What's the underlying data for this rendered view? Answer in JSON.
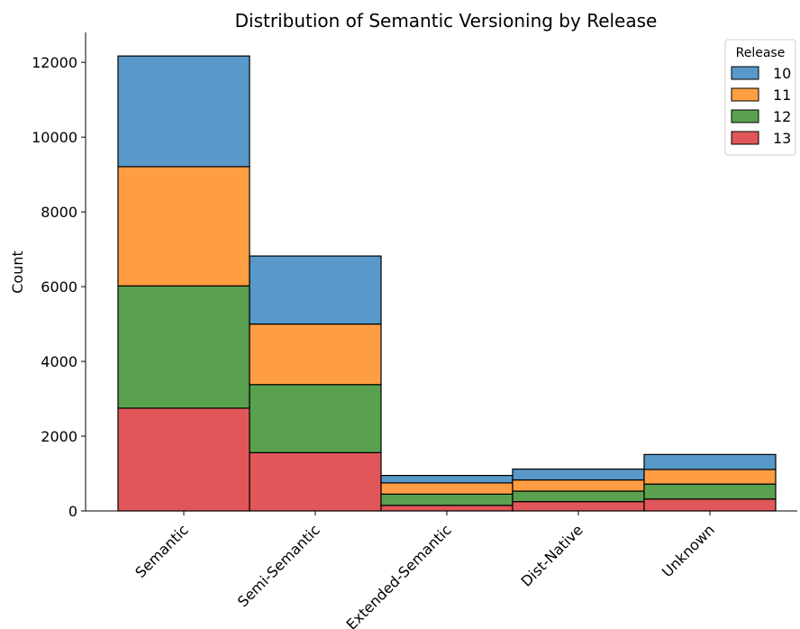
{
  "chart_data": {
    "type": "bar",
    "stacked": true,
    "title": "Distribution of Semantic Versioning by Release",
    "xlabel": "",
    "ylabel": "Count",
    "ylim": [
      0,
      12800
    ],
    "yticks": [
      0,
      2000,
      4000,
      6000,
      8000,
      10000,
      12000
    ],
    "categories": [
      "Semantic",
      "Semi-Semantic",
      "Extended-Semantic",
      "Dist-Native",
      "Unknown"
    ],
    "series": [
      {
        "name": "13",
        "color": "#e15759",
        "values": [
          2750,
          1560,
          150,
          250,
          320
        ]
      },
      {
        "name": "12",
        "color": "#59a14f",
        "values": [
          3270,
          1820,
          300,
          280,
          400
        ]
      },
      {
        "name": "11",
        "color": "#ff9d43",
        "values": [
          3190,
          1620,
          300,
          300,
          390
        ]
      },
      {
        "name": "10",
        "color": "#5899c9",
        "values": [
          2960,
          1820,
          200,
          290,
          400
        ]
      }
    ],
    "legend": {
      "title": "Release",
      "placement": "top-right",
      "order": [
        "10",
        "11",
        "12",
        "13"
      ]
    },
    "grid": false
  }
}
